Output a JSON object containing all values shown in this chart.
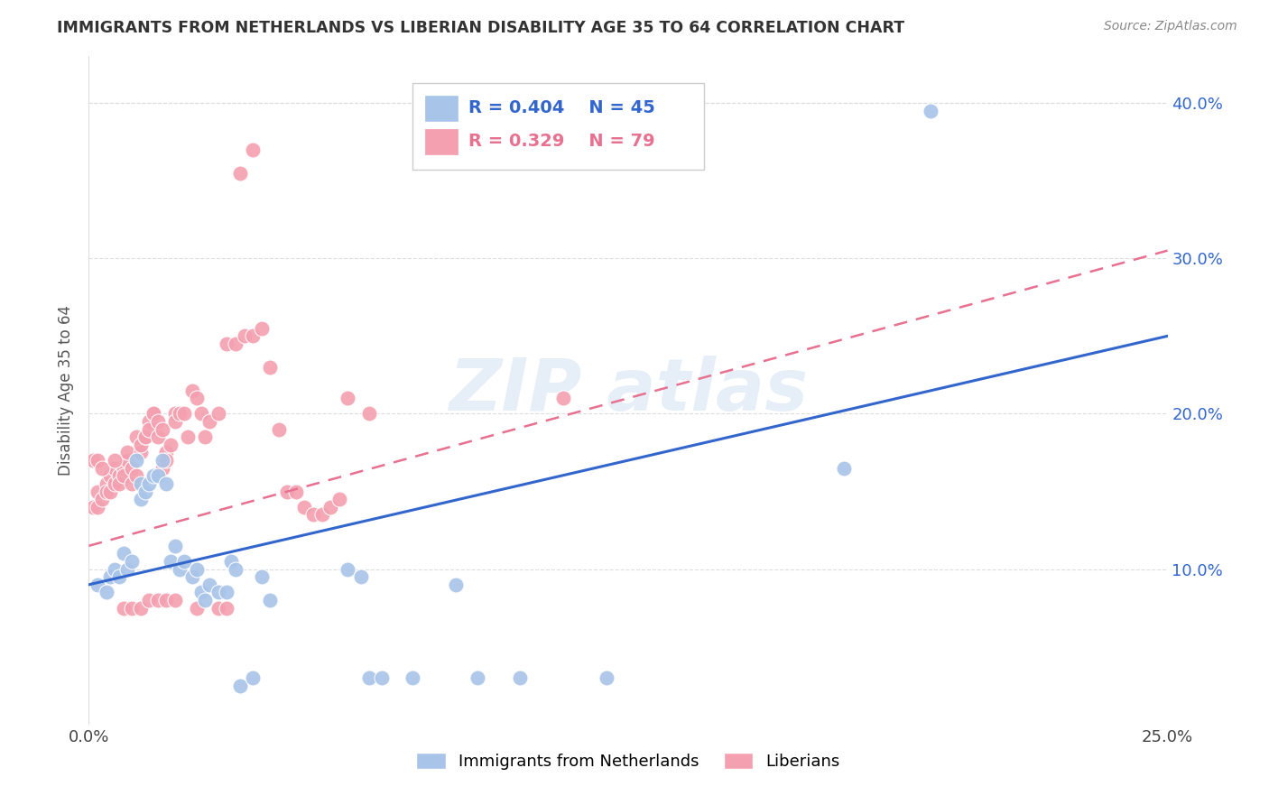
{
  "title": "IMMIGRANTS FROM NETHERLANDS VS LIBERIAN DISABILITY AGE 35 TO 64 CORRELATION CHART",
  "source_text": "Source: ZipAtlas.com",
  "ylabel": "Disability Age 35 to 64",
  "xlim": [
    0.0,
    0.25
  ],
  "ylim": [
    0.0,
    0.43
  ],
  "xtick_labels": [
    "0.0%",
    "",
    "",
    "",
    "",
    "25.0%"
  ],
  "xtick_values": [
    0.0,
    0.05,
    0.1,
    0.15,
    0.2,
    0.25
  ],
  "ytick_labels": [
    "10.0%",
    "20.0%",
    "30.0%",
    "40.0%"
  ],
  "ytick_values": [
    0.1,
    0.2,
    0.3,
    0.4
  ],
  "blue_color": "#A8C4E8",
  "pink_color": "#F4A0B0",
  "blue_line_color": "#3366CC",
  "pink_line_color": "#E87090",
  "legend_R_blue": "R = 0.404",
  "legend_N_blue": "N = 45",
  "legend_R_pink": "R = 0.329",
  "legend_N_pink": "N = 79",
  "blue_series_label": "Immigrants from Netherlands",
  "pink_series_label": "Liberians",
  "blue_scatter": [
    [
      0.002,
      0.09
    ],
    [
      0.004,
      0.085
    ],
    [
      0.005,
      0.095
    ],
    [
      0.006,
      0.1
    ],
    [
      0.007,
      0.095
    ],
    [
      0.008,
      0.11
    ],
    [
      0.009,
      0.1
    ],
    [
      0.01,
      0.105
    ],
    [
      0.011,
      0.17
    ],
    [
      0.012,
      0.145
    ],
    [
      0.012,
      0.155
    ],
    [
      0.013,
      0.15
    ],
    [
      0.014,
      0.155
    ],
    [
      0.015,
      0.16
    ],
    [
      0.016,
      0.16
    ],
    [
      0.017,
      0.17
    ],
    [
      0.018,
      0.155
    ],
    [
      0.019,
      0.105
    ],
    [
      0.02,
      0.115
    ],
    [
      0.021,
      0.1
    ],
    [
      0.022,
      0.105
    ],
    [
      0.024,
      0.095
    ],
    [
      0.025,
      0.1
    ],
    [
      0.026,
      0.085
    ],
    [
      0.027,
      0.08
    ],
    [
      0.028,
      0.09
    ],
    [
      0.03,
      0.085
    ],
    [
      0.032,
      0.085
    ],
    [
      0.033,
      0.105
    ],
    [
      0.034,
      0.1
    ],
    [
      0.035,
      0.025
    ],
    [
      0.038,
      0.03
    ],
    [
      0.04,
      0.095
    ],
    [
      0.042,
      0.08
    ],
    [
      0.06,
      0.1
    ],
    [
      0.063,
      0.095
    ],
    [
      0.065,
      0.03
    ],
    [
      0.068,
      0.03
    ],
    [
      0.075,
      0.03
    ],
    [
      0.085,
      0.09
    ],
    [
      0.09,
      0.03
    ],
    [
      0.1,
      0.03
    ],
    [
      0.12,
      0.03
    ],
    [
      0.175,
      0.165
    ],
    [
      0.195,
      0.395
    ]
  ],
  "pink_scatter": [
    [
      0.001,
      0.14
    ],
    [
      0.002,
      0.15
    ],
    [
      0.002,
      0.14
    ],
    [
      0.003,
      0.145
    ],
    [
      0.004,
      0.155
    ],
    [
      0.004,
      0.15
    ],
    [
      0.005,
      0.16
    ],
    [
      0.005,
      0.15
    ],
    [
      0.006,
      0.155
    ],
    [
      0.006,
      0.165
    ],
    [
      0.007,
      0.16
    ],
    [
      0.007,
      0.155
    ],
    [
      0.008,
      0.165
    ],
    [
      0.008,
      0.16
    ],
    [
      0.009,
      0.17
    ],
    [
      0.009,
      0.175
    ],
    [
      0.01,
      0.155
    ],
    [
      0.01,
      0.165
    ],
    [
      0.011,
      0.16
    ],
    [
      0.011,
      0.185
    ],
    [
      0.012,
      0.175
    ],
    [
      0.012,
      0.18
    ],
    [
      0.013,
      0.185
    ],
    [
      0.013,
      0.185
    ],
    [
      0.014,
      0.195
    ],
    [
      0.014,
      0.19
    ],
    [
      0.015,
      0.2
    ],
    [
      0.015,
      0.2
    ],
    [
      0.016,
      0.195
    ],
    [
      0.016,
      0.185
    ],
    [
      0.017,
      0.19
    ],
    [
      0.017,
      0.165
    ],
    [
      0.018,
      0.175
    ],
    [
      0.018,
      0.17
    ],
    [
      0.019,
      0.18
    ],
    [
      0.02,
      0.2
    ],
    [
      0.02,
      0.195
    ],
    [
      0.021,
      0.2
    ],
    [
      0.022,
      0.2
    ],
    [
      0.023,
      0.185
    ],
    [
      0.024,
      0.215
    ],
    [
      0.025,
      0.21
    ],
    [
      0.026,
      0.2
    ],
    [
      0.027,
      0.185
    ],
    [
      0.028,
      0.195
    ],
    [
      0.03,
      0.2
    ],
    [
      0.032,
      0.245
    ],
    [
      0.034,
      0.245
    ],
    [
      0.036,
      0.25
    ],
    [
      0.038,
      0.25
    ],
    [
      0.04,
      0.255
    ],
    [
      0.042,
      0.23
    ],
    [
      0.044,
      0.19
    ],
    [
      0.046,
      0.15
    ],
    [
      0.048,
      0.15
    ],
    [
      0.05,
      0.14
    ],
    [
      0.052,
      0.135
    ],
    [
      0.054,
      0.135
    ],
    [
      0.056,
      0.14
    ],
    [
      0.058,
      0.145
    ],
    [
      0.001,
      0.17
    ],
    [
      0.002,
      0.17
    ],
    [
      0.003,
      0.165
    ],
    [
      0.006,
      0.17
    ],
    [
      0.008,
      0.075
    ],
    [
      0.01,
      0.075
    ],
    [
      0.012,
      0.075
    ],
    [
      0.014,
      0.08
    ],
    [
      0.016,
      0.08
    ],
    [
      0.018,
      0.08
    ],
    [
      0.02,
      0.08
    ],
    [
      0.025,
      0.075
    ],
    [
      0.03,
      0.075
    ],
    [
      0.032,
      0.075
    ],
    [
      0.035,
      0.355
    ],
    [
      0.038,
      0.37
    ],
    [
      0.06,
      0.21
    ],
    [
      0.065,
      0.2
    ],
    [
      0.11,
      0.21
    ]
  ],
  "blue_trendline_x": [
    0.0,
    0.25
  ],
  "blue_trendline_y": [
    0.09,
    0.25
  ],
  "pink_trendline_x": [
    0.0,
    0.25
  ],
  "pink_trendline_y": [
    0.115,
    0.305
  ],
  "background_color": "#FFFFFF",
  "grid_color": "#DDDDDD",
  "tick_label_color": "#3366CC",
  "ylabel_color": "#555555"
}
